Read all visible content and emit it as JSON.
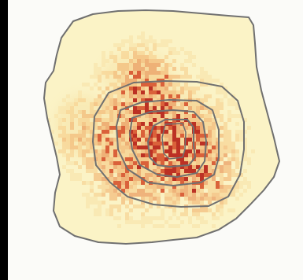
{
  "map": {
    "background_color": "#000000",
    "panel_color": "#fbfbf8",
    "land_fill": "#fbf3c6",
    "land_fill_mid": "#f8e9b4",
    "boundary_color": "#707070",
    "density_colors": [
      "#f9e3a8",
      "#f6cf8c",
      "#f2b06c",
      "#e88b4c",
      "#d85a34",
      "#b8271c"
    ],
    "contour_levels": [
      "city-boundary",
      "ring-4",
      "ring-3",
      "ring-2",
      "core-ring"
    ]
  }
}
